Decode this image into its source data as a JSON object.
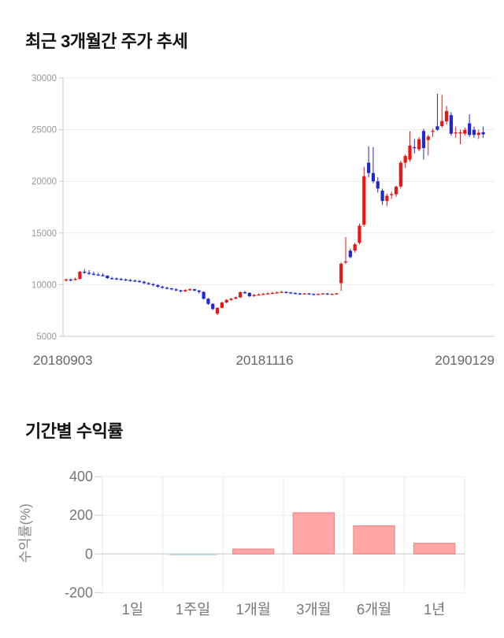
{
  "page": {
    "background": "#ffffff"
  },
  "chart_data": [
    {
      "type": "candlestick",
      "title": "최근 3개월간 주가 추세",
      "ylim": [
        5000,
        30000
      ],
      "yticks": [
        30000,
        25000,
        20000,
        15000,
        10000,
        5000
      ],
      "xtick_labels": [
        "20180903",
        "20181116",
        "20190129"
      ],
      "grid": true,
      "up_color": "#ea1515",
      "down_color": "#2028d2",
      "axis_color": "#c9c9c9",
      "grid_color": "#ececec",
      "tick_label_color": "#999999",
      "date_label_color": "#666666",
      "candles_ohlc": [
        [
          10400,
          10600,
          10300,
          10500
        ],
        [
          10500,
          10600,
          10350,
          10450
        ],
        [
          10450,
          10700,
          10400,
          10550
        ],
        [
          10550,
          11350,
          10500,
          11250
        ],
        [
          11250,
          11500,
          11050,
          11150
        ],
        [
          11150,
          11400,
          10950,
          11050
        ],
        [
          11050,
          11250,
          10900,
          10980
        ],
        [
          10980,
          11150,
          10850,
          10920
        ],
        [
          10920,
          11100,
          10800,
          10870
        ],
        [
          10870,
          10900,
          10550,
          10630
        ],
        [
          10630,
          10750,
          10500,
          10600
        ],
        [
          10600,
          10700,
          10450,
          10550
        ],
        [
          10550,
          10650,
          10400,
          10500
        ],
        [
          10500,
          10600,
          10350,
          10450
        ],
        [
          10450,
          10550,
          10300,
          10400
        ],
        [
          10400,
          10500,
          10250,
          10350
        ],
        [
          10350,
          10450,
          10200,
          10280
        ],
        [
          10280,
          10380,
          10050,
          10150
        ],
        [
          10150,
          10250,
          9950,
          10050
        ],
        [
          10050,
          10150,
          9850,
          9950
        ],
        [
          9950,
          10050,
          9700,
          9800
        ],
        [
          9800,
          9900,
          9600,
          9700
        ],
        [
          9700,
          9800,
          9550,
          9650
        ],
        [
          9650,
          9700,
          9450,
          9550
        ],
        [
          9550,
          9650,
          9350,
          9450
        ],
        [
          9450,
          9500,
          9250,
          9350
        ],
        [
          9350,
          9550,
          9300,
          9480
        ],
        [
          9480,
          9650,
          9400,
          9560
        ],
        [
          9560,
          9600,
          9350,
          9430
        ],
        [
          9430,
          9500,
          9150,
          9300
        ],
        [
          9300,
          9350,
          8550,
          8640
        ],
        [
          8640,
          8700,
          8050,
          8140
        ],
        [
          8140,
          8200,
          7550,
          7640
        ],
        [
          7200,
          7800,
          7050,
          7760
        ],
        [
          7760,
          8350,
          7700,
          8270
        ],
        [
          8270,
          8600,
          8200,
          8520
        ],
        [
          8520,
          8720,
          8450,
          8640
        ],
        [
          8640,
          8850,
          8580,
          8770
        ],
        [
          8770,
          9350,
          8700,
          9270
        ],
        [
          9270,
          9400,
          9100,
          9200
        ],
        [
          9200,
          9270,
          8800,
          8890
        ],
        [
          8890,
          9100,
          8820,
          9000
        ],
        [
          9000,
          9150,
          8950,
          9050
        ],
        [
          9050,
          9200,
          9000,
          9100
        ],
        [
          9100,
          9250,
          9050,
          9150
        ],
        [
          9150,
          9300,
          9100,
          9200
        ],
        [
          9200,
          9350,
          9150,
          9250
        ],
        [
          9250,
          9400,
          9200,
          9300
        ],
        [
          9300,
          9350,
          9150,
          9250
        ],
        [
          9250,
          9300,
          9100,
          9200
        ],
        [
          9200,
          9250,
          9050,
          9150
        ],
        [
          9150,
          9200,
          9000,
          9100
        ],
        [
          9100,
          9200,
          9050,
          9150
        ],
        [
          9150,
          9180,
          9020,
          9100
        ],
        [
          9100,
          9150,
          8980,
          9050
        ],
        [
          9050,
          9150,
          9000,
          9100
        ],
        [
          9100,
          9200,
          9050,
          9150
        ],
        [
          9150,
          9180,
          9000,
          9100
        ],
        [
          9100,
          9160,
          9020,
          9100
        ],
        [
          9100,
          9200,
          9050,
          9150
        ],
        [
          10150,
          12150,
          9400,
          12030
        ],
        [
          12150,
          14600,
          12000,
          12250
        ],
        [
          13290,
          13500,
          12550,
          12670
        ],
        [
          13300,
          14050,
          13100,
          13900
        ],
        [
          14050,
          15900,
          13900,
          15700
        ],
        [
          15800,
          21400,
          15600,
          20500
        ],
        [
          21800,
          23400,
          20400,
          20800
        ],
        [
          20800,
          23300,
          19800,
          20000
        ],
        [
          20000,
          20400,
          18900,
          19300
        ],
        [
          19100,
          19300,
          17700,
          18100
        ],
        [
          18100,
          18800,
          17600,
          18600
        ],
        [
          18700,
          19000,
          18300,
          18750
        ],
        [
          18750,
          19600,
          18500,
          19470
        ],
        [
          19500,
          22000,
          19300,
          21800
        ],
        [
          21800,
          22600,
          21300,
          22450
        ],
        [
          22100,
          24850,
          21900,
          23450
        ],
        [
          23300,
          24100,
          22700,
          23200
        ],
        [
          23100,
          24300,
          22900,
          24070
        ],
        [
          24870,
          25100,
          22100,
          23220
        ],
        [
          24000,
          24500,
          22500,
          24340
        ],
        [
          24800,
          25100,
          24300,
          24880
        ],
        [
          25330,
          28480,
          24900,
          24990
        ],
        [
          25350,
          28360,
          25200,
          25830
        ],
        [
          25800,
          27300,
          25500,
          26790
        ],
        [
          26400,
          26700,
          24400,
          24610
        ],
        [
          24700,
          25300,
          24200,
          24730
        ],
        [
          24730,
          25000,
          23600,
          24730
        ],
        [
          24610,
          25200,
          24400,
          24980
        ],
        [
          25610,
          26490,
          24300,
          24490
        ],
        [
          24980,
          25300,
          24200,
          24490
        ],
        [
          24490,
          25000,
          24100,
          24700
        ],
        [
          24750,
          25300,
          24200,
          24550
        ]
      ]
    },
    {
      "type": "bar",
      "title": "기간별 수익률",
      "ylabel": "수익률(%)",
      "categories": [
        "1일",
        "1주일",
        "1개월",
        "3개월",
        "6개월",
        "1년"
      ],
      "values": [
        0,
        -1,
        25,
        213,
        145,
        55
      ],
      "yticks": [
        400,
        200,
        0,
        -200
      ],
      "ylim": [
        -200,
        400
      ],
      "grid": true,
      "legend_position": "none",
      "bar_color": "#ffa6a6",
      "bar_border_color": "#f08f8f",
      "negative_bar_color": "#b9cfdf",
      "grid_color": "#efefef",
      "zero_line_color": "#d8d8d8",
      "tick_label_color": "#777777",
      "category_label_color": "#777777",
      "ylabel_color": "#888888"
    }
  ]
}
